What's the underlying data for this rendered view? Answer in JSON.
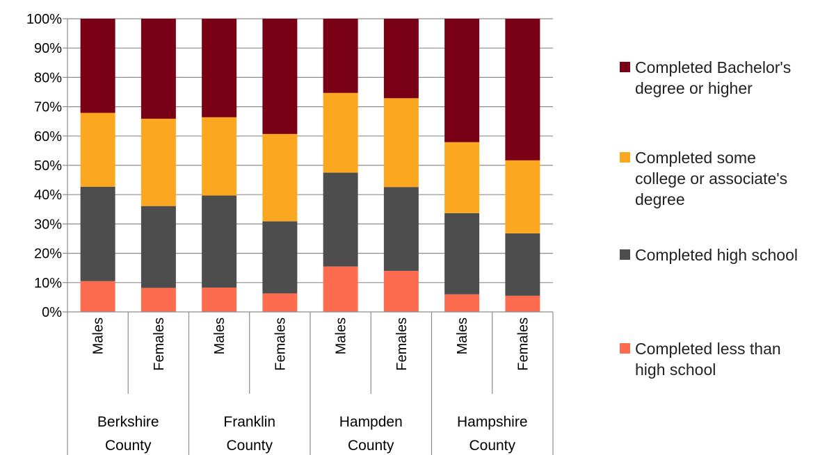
{
  "chart_data": {
    "type": "bar",
    "stacked": true,
    "percent_stacked": true,
    "title": "",
    "xlabel": "",
    "ylabel": "",
    "ylim": [
      0,
      100
    ],
    "yticks": [
      "0%",
      "10%",
      "20%",
      "30%",
      "40%",
      "50%",
      "60%",
      "70%",
      "80%",
      "90%",
      "100%"
    ],
    "grid": true,
    "legend_position": "right",
    "groups": [
      {
        "label_lines": [
          "Berkshire",
          "County"
        ],
        "categories": [
          "Males",
          "Females"
        ]
      },
      {
        "label_lines": [
          "Franklin",
          "County"
        ],
        "categories": [
          "Males",
          "Females"
        ]
      },
      {
        "label_lines": [
          "Hampden",
          "County"
        ],
        "categories": [
          "Males",
          "Females"
        ]
      },
      {
        "label_lines": [
          "Hampshire",
          "County"
        ],
        "categories": [
          "Males",
          "Females"
        ]
      }
    ],
    "categories": [
      "Males",
      "Females",
      "Males",
      "Females",
      "Males",
      "Females",
      "Males",
      "Females"
    ],
    "series": [
      {
        "name": "Completed less than high school",
        "label_lines": [
          "Completed less than",
          "high school"
        ],
        "color": "#fd6c4f",
        "values": [
          10.5,
          8.2,
          8.3,
          6.3,
          15.5,
          14.0,
          6.0,
          5.5
        ]
      },
      {
        "name": "Completed high school",
        "label_lines": [
          "Completed high school"
        ],
        "color": "#4d4d4d",
        "values": [
          32.2,
          27.9,
          31.4,
          24.6,
          32.0,
          28.6,
          27.7,
          21.3
        ]
      },
      {
        "name": "Completed some college or associate's degree",
        "label_lines": [
          "Completed some",
          "college or associate's",
          "degree"
        ],
        "color": "#fba71f",
        "values": [
          25.2,
          29.8,
          26.7,
          29.8,
          27.2,
          30.3,
          24.2,
          24.9
        ]
      },
      {
        "name": "Completed Bachelor's degree or higher",
        "label_lines": [
          "Completed Bachelor's",
          "degree or higher"
        ],
        "color": "#7a0016",
        "values": [
          32.1,
          34.1,
          33.6,
          39.3,
          25.3,
          27.1,
          42.1,
          48.3
        ]
      }
    ]
  }
}
